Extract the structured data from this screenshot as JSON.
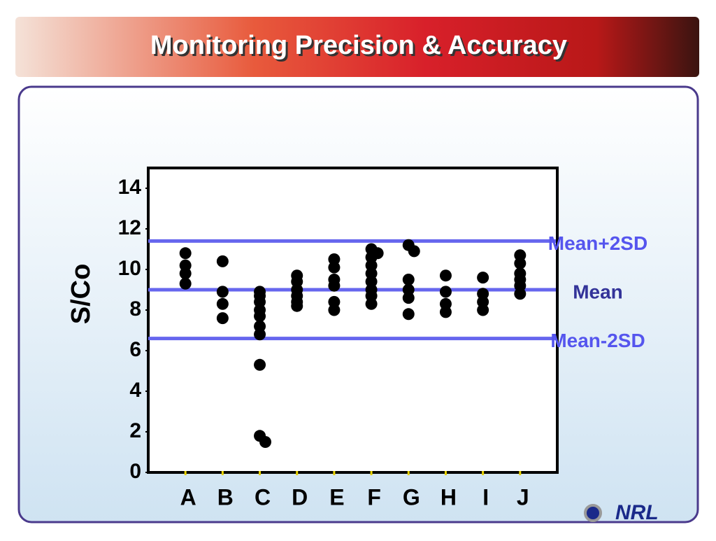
{
  "chart_data": {
    "type": "scatter",
    "title": "Monitoring Precision & Accuracy",
    "ylabel": "S/Co",
    "xlim": [
      0,
      11
    ],
    "xticks": [
      {
        "value": 1,
        "label": "A"
      },
      {
        "value": 2,
        "label": "B"
      },
      {
        "value": 3,
        "label": "C"
      },
      {
        "value": 4,
        "label": "D"
      },
      {
        "value": 5,
        "label": "E"
      },
      {
        "value": 6,
        "label": "F"
      },
      {
        "value": 7,
        "label": "G"
      },
      {
        "value": 8,
        "label": "H"
      },
      {
        "value": 9,
        "label": "I"
      },
      {
        "value": 10,
        "label": "J"
      }
    ],
    "ylim": [
      0,
      15
    ],
    "yticks": [
      0,
      2,
      4,
      6,
      8,
      10,
      12,
      14
    ],
    "grid": false,
    "series": [
      {
        "color": "#000000",
        "x": [
          1,
          1,
          1,
          1,
          2,
          2,
          2,
          2,
          3,
          3,
          3,
          3,
          3,
          3,
          3,
          3,
          3,
          3.15,
          4,
          4,
          4,
          4,
          4,
          4,
          5,
          5,
          5,
          5,
          5,
          5,
          6,
          6,
          6,
          6,
          6,
          6,
          6,
          6,
          6.17,
          7,
          7.15,
          7,
          7,
          7,
          7,
          8,
          8,
          8,
          8,
          9,
          9,
          9,
          9,
          10,
          10,
          10,
          10,
          10,
          10
        ],
        "values": [
          10.8,
          10.2,
          9.8,
          9.3,
          10.4,
          8.9,
          8.3,
          7.6,
          8.9,
          8.7,
          8.4,
          8.0,
          7.7,
          7.2,
          6.8,
          5.3,
          1.8,
          1.5,
          9.7,
          9.4,
          9.0,
          8.7,
          8.4,
          8.2,
          10.5,
          10.1,
          9.5,
          9.2,
          8.4,
          8.0,
          11.0,
          10.6,
          10.2,
          9.8,
          9.4,
          9.0,
          8.7,
          8.3,
          10.8,
          11.2,
          10.9,
          9.5,
          9.0,
          8.6,
          7.8,
          9.7,
          8.9,
          8.3,
          7.9,
          9.6,
          8.8,
          8.4,
          8.0,
          10.7,
          10.3,
          9.8,
          9.5,
          9.2,
          8.8
        ]
      }
    ],
    "reference_lines": [
      {
        "label": "Mean+2SD",
        "value": 11.4,
        "color": "#6666ee",
        "label_color": "#5555ee"
      },
      {
        "label": "Mean",
        "value": 9.0,
        "color": "#6666ee",
        "label_color": "#333399"
      },
      {
        "label": "Mean-2SD",
        "value": 6.6,
        "color": "#6666ee",
        "label_color": "#5555ee"
      }
    ],
    "logo": "NRL"
  }
}
